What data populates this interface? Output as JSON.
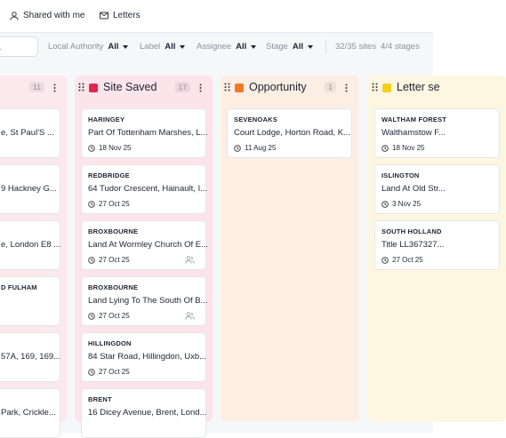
{
  "top_bar": {
    "items": [
      "Shared with me",
      "Letters"
    ]
  },
  "filters": {
    "search": "...",
    "items": [
      {
        "label": "Local Authority",
        "value": "All"
      },
      {
        "label": "Label",
        "value": "All"
      },
      {
        "label": "Assignee",
        "value": "All"
      },
      {
        "label": "Stage",
        "value": "All"
      }
    ],
    "summary": [
      "32/35 sites",
      "4/4 stages"
    ]
  },
  "columns": [
    {
      "count": "11",
      "cards": [
        {
          "address": "e, St Paul'S ..."
        },
        {
          "address": "9 Hackney G..."
        },
        {
          "address": "e, London E8 ..."
        },
        {
          "authority": "D FULHAM"
        },
        {
          "address": "57A, 169, 169..."
        },
        {
          "address": "Park, Crickle..."
        }
      ]
    },
    {
      "title": "Site Saved",
      "count": "17",
      "color": "#e0284f",
      "cards": [
        {
          "authority": "HARINGEY",
          "address": "Part Of Tottenham Marshes, L...",
          "date": "18 Nov 25"
        },
        {
          "authority": "REDBRIDGE",
          "address": "64 Tudor Crescent, Hainault, I...",
          "date": "27 Oct 25"
        },
        {
          "authority": "BROXBOURNE",
          "address": "Land At Wormley Church Of E...",
          "date": "27 Oct 25",
          "assignee_icon": true
        },
        {
          "authority": "BROXBOURNE",
          "address": "Land Lying To The South Of B...",
          "date": "27 Oct 25",
          "assignee_icon": true
        },
        {
          "authority": "HILLINGDON",
          "address": "84 Star Road, Hillingdon, Uxb...",
          "date": "27 Oct 25"
        },
        {
          "authority": "BRENT",
          "address": "16 Dicey Avenue, Brent, Lond..."
        }
      ]
    },
    {
      "title": "Opportunity",
      "count": "1",
      "color": "#f07a22",
      "cards": [
        {
          "authority": "SEVENOAKS",
          "address": "Court Lodge, Horton Road, K...",
          "date": "11 Aug 25"
        }
      ]
    },
    {
      "title": "Letter se",
      "color": "#f5cf1f",
      "cards": [
        {
          "authority": "WALTHAM FOREST",
          "address": "Walthamstow F...",
          "date": "18 Nov 25"
        },
        {
          "authority": "ISLINGTON",
          "address": "Land At Old Str...",
          "date": "3 Nov 25"
        },
        {
          "authority": "SOUTH HOLLAND",
          "address": "Title LL367327...",
          "date": "27 Oct 25"
        }
      ]
    }
  ]
}
